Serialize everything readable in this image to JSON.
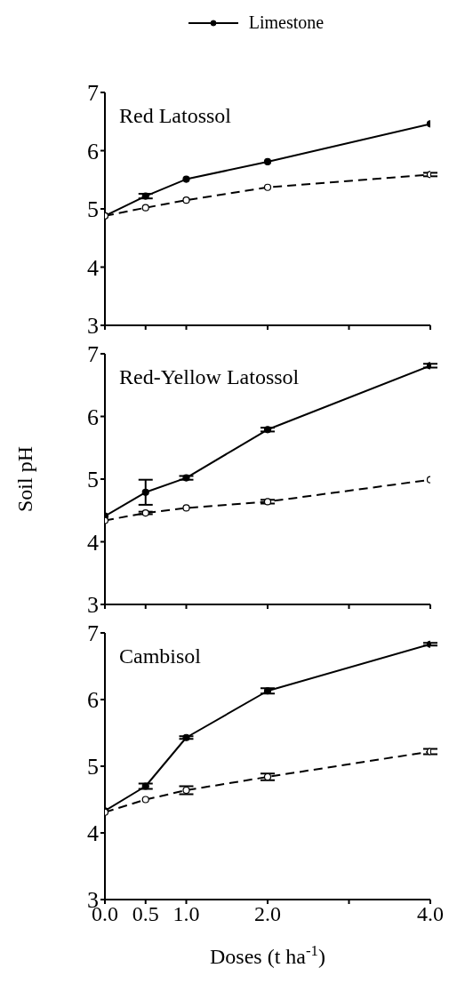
{
  "chart_data": [
    {
      "type": "line",
      "title": "Red Latossol",
      "x": [
        0,
        0.5,
        1,
        2,
        4
      ],
      "xlim": [
        0,
        4
      ],
      "xticks": [
        {
          "value": 0,
          "label": null
        },
        {
          "value": 0.5,
          "label": null
        },
        {
          "value": 1,
          "label": null
        },
        {
          "value": 2,
          "label": null
        },
        {
          "value": 3,
          "label": null
        },
        {
          "value": 4,
          "label": null
        }
      ],
      "ylim": [
        3,
        7
      ],
      "yticks": [
        3,
        4,
        5,
        6,
        7
      ],
      "tick_labels": "y",
      "legend": "top",
      "marker": "circle",
      "grid": false,
      "series": [
        {
          "name": "Limestone",
          "color": "#000000",
          "line_style": "solid",
          "values": [
            4.88,
            5.22,
            5.51,
            5.81,
            6.46
          ],
          "errors": [
            null,
            0.04,
            null,
            null,
            null
          ]
        },
        {
          "color": "#000000",
          "line_style": "dashed",
          "values": [
            4.88,
            5.02,
            5.15,
            5.37,
            5.59
          ],
          "errors": [
            null,
            null,
            null,
            null,
            0.03
          ]
        }
      ]
    },
    {
      "type": "line",
      "title": "Red-Yellow Latossol",
      "ylabel": "Soil pH",
      "x": [
        0,
        0.5,
        1,
        2,
        4
      ],
      "xlim": [
        0,
        4
      ],
      "xticks": [
        {
          "value": 0,
          "label": null
        },
        {
          "value": 0.5,
          "label": null
        },
        {
          "value": 1,
          "label": null
        },
        {
          "value": 2,
          "label": null
        },
        {
          "value": 3,
          "label": null
        },
        {
          "value": 4,
          "label": null
        }
      ],
      "ylim": [
        3,
        7
      ],
      "yticks": [
        3,
        4,
        5,
        6,
        7
      ],
      "tick_labels": "y",
      "marker": "circle",
      "grid": false,
      "series": [
        {
          "color": "#000000",
          "line_style": "solid",
          "values": [
            4.41,
            4.79,
            5.02,
            5.79,
            6.81
          ],
          "errors": [
            null,
            0.2,
            0.03,
            0.03,
            0.03
          ]
        },
        {
          "color": "#000000",
          "line_style": "dashed",
          "values": [
            4.34,
            4.46,
            4.54,
            4.64,
            4.99
          ],
          "errors": [
            null,
            0.02,
            null,
            0.03,
            null
          ]
        }
      ]
    },
    {
      "type": "line",
      "title": "Cambisol",
      "xlabel": "Doses (t ha$^{-1}$)",
      "x": [
        0,
        0.5,
        1,
        2,
        4
      ],
      "xlim": [
        0,
        4
      ],
      "xticks": [
        {
          "value": 0,
          "label": "0.0"
        },
        {
          "value": 0.5,
          "label": "0.5"
        },
        {
          "value": 1,
          "label": "1.0"
        },
        {
          "value": 2,
          "label": "2.0"
        },
        {
          "value": 3,
          "label": null
        },
        {
          "value": 4,
          "label": "4.0"
        }
      ],
      "ylim": [
        3,
        7
      ],
      "yticks": [
        3,
        4,
        5,
        6,
        7
      ],
      "marker": "circle",
      "grid": false,
      "series": [
        {
          "color": "#000000",
          "line_style": "solid",
          "values": [
            4.33,
            4.7,
            5.43,
            6.13,
            6.83
          ],
          "errors": [
            null,
            0.04,
            0.02,
            0.04,
            0.02
          ]
        },
        {
          "color": "#000000",
          "line_style": "dashed",
          "values": [
            4.31,
            4.5,
            4.64,
            4.84,
            5.22
          ],
          "errors": [
            null,
            null,
            0.06,
            0.05,
            0.04
          ]
        }
      ]
    }
  ]
}
